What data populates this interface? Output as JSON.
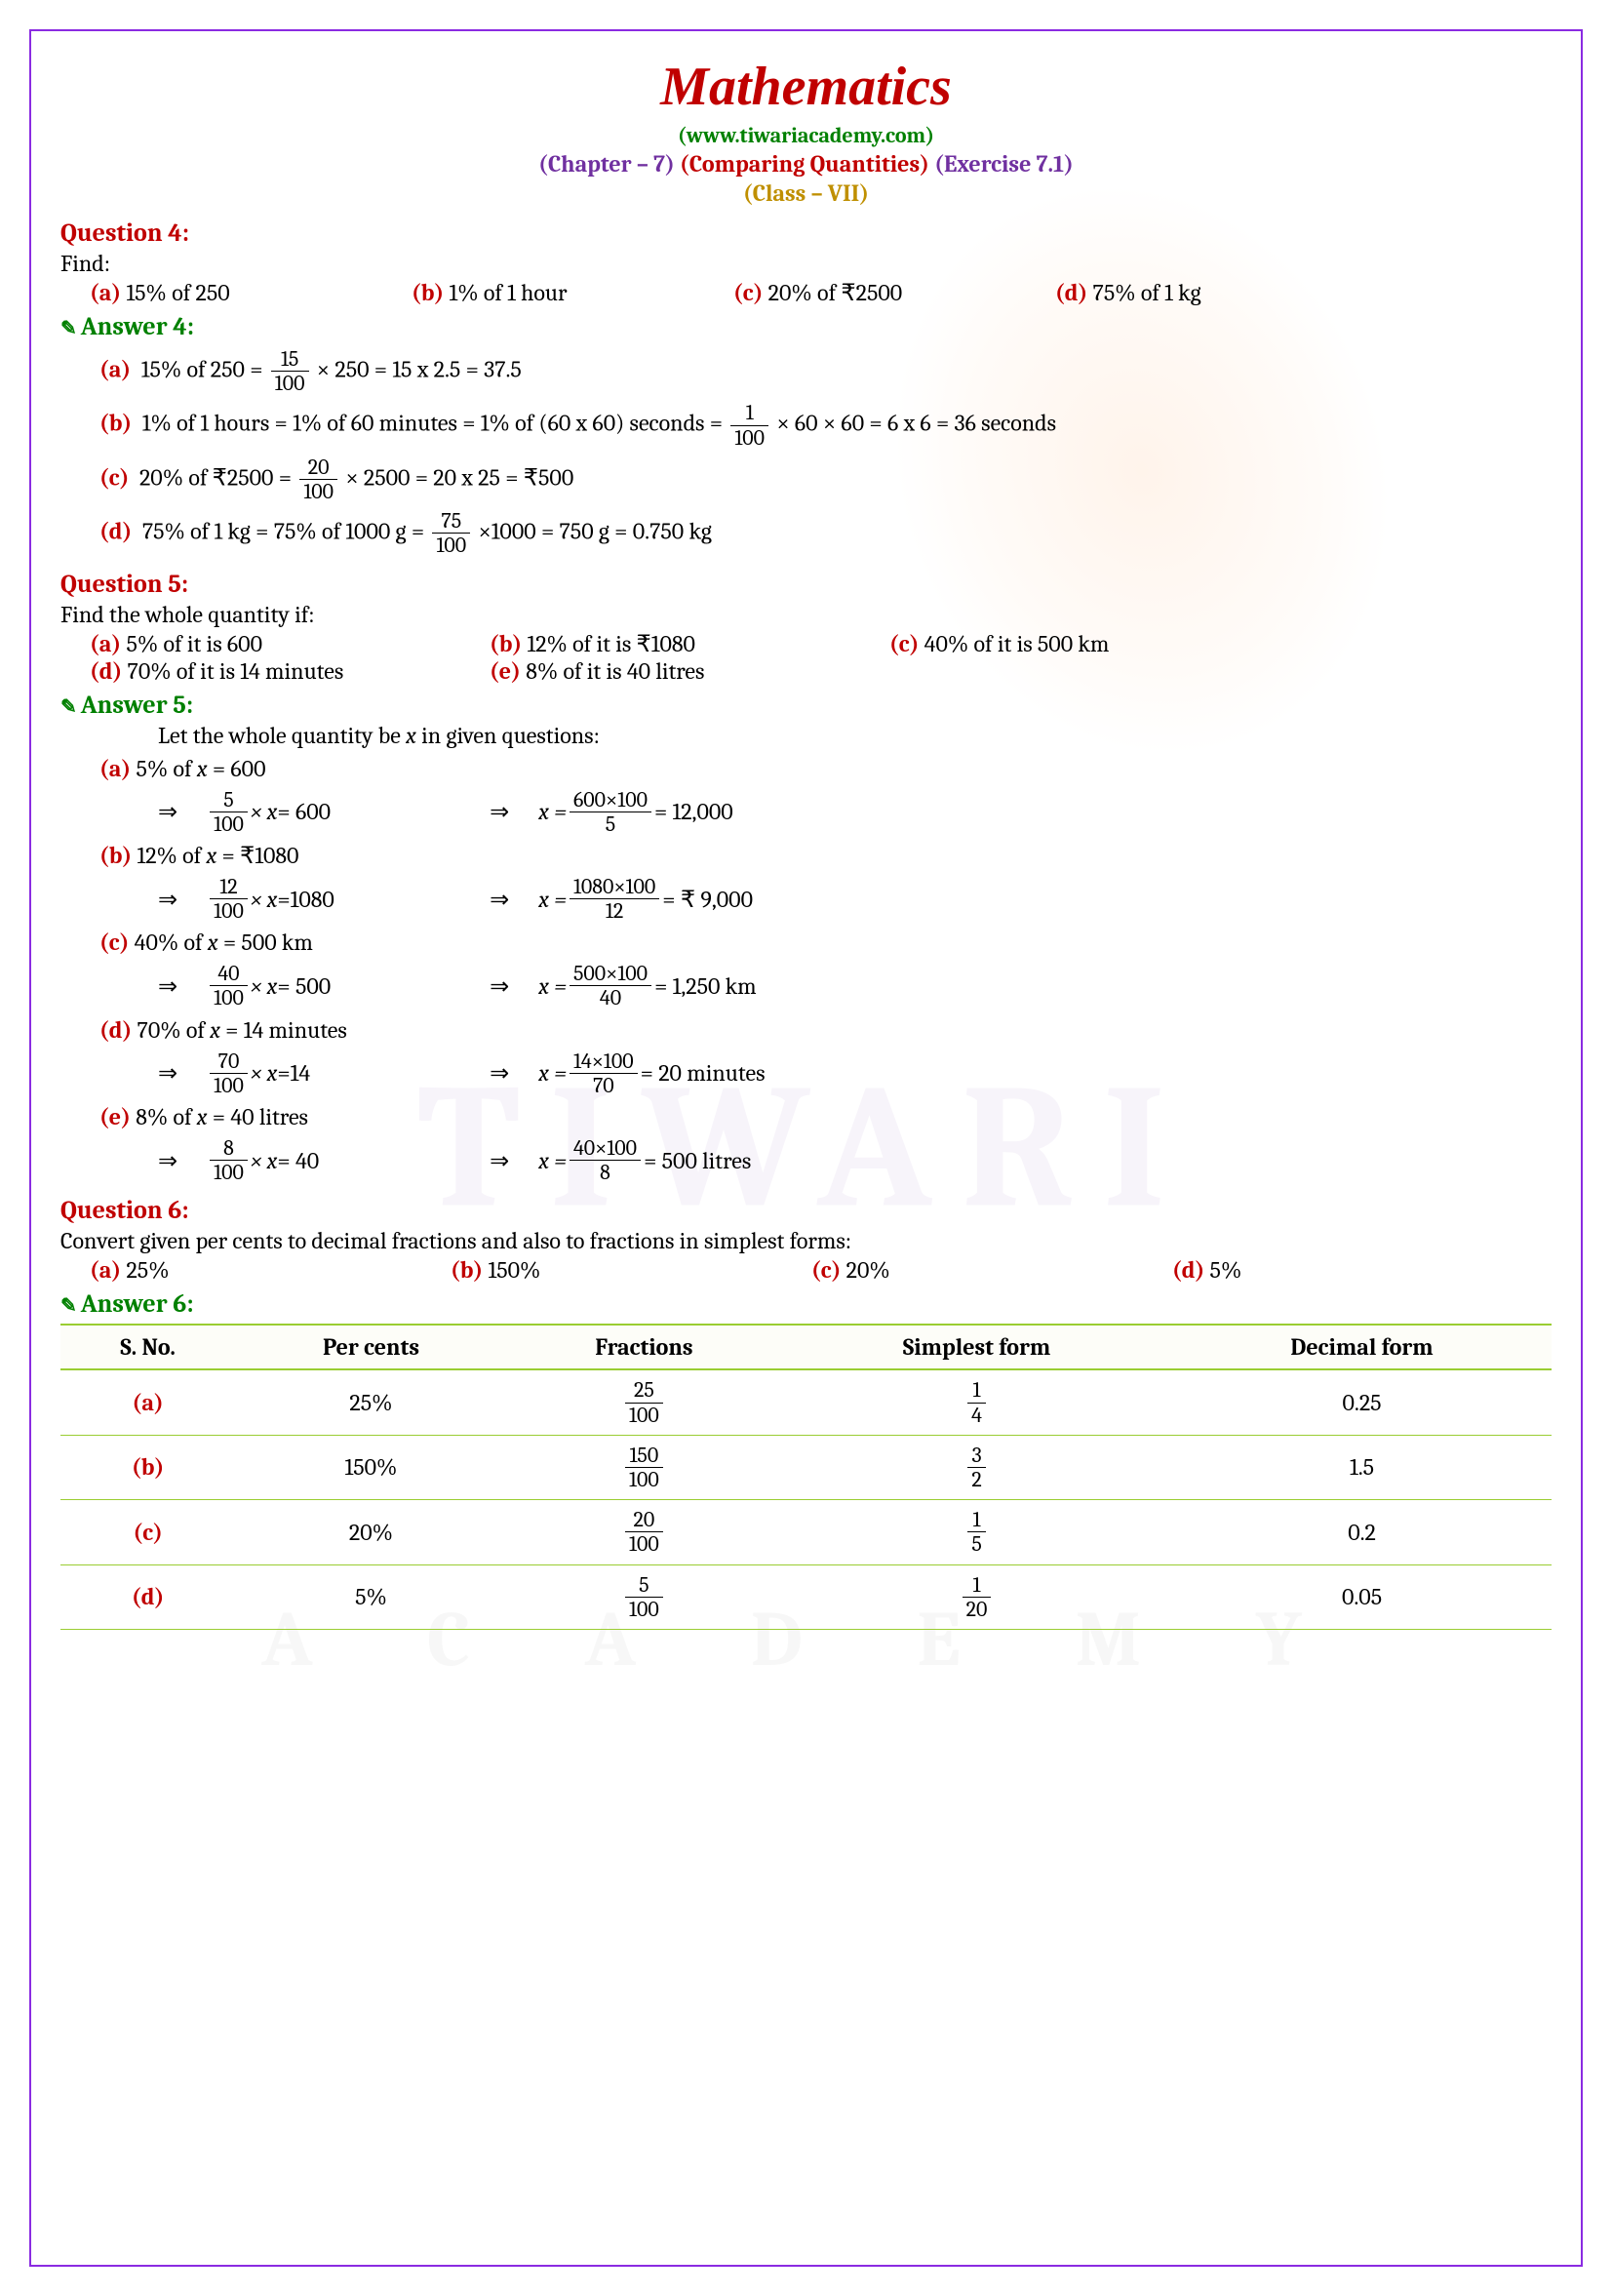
{
  "header": {
    "title": "Mathematics",
    "website": "(www.tiwariacademy.com)",
    "chapter": "(Chapter – 7) ",
    "topic": "(Comparing Quantities) ",
    "exercise": "(Exercise 7.1)",
    "class": "(Class – VII)"
  },
  "q4": {
    "heading": "Question 4:",
    "prompt": "Find:",
    "opts": {
      "a": "15% of 250",
      "b": "1% of 1 hour",
      "c": "20% of ₹2500",
      "d": "75% of 1 kg"
    },
    "ans_heading": "Answer 4:",
    "a": {
      "lhs": "15% of 250 = ",
      "num": "15",
      "den": "100",
      "mult": "× 250",
      "rhs": " = 15 x 2.5 = 37.5"
    },
    "b": {
      "lhs": "1% of 1 hours = 1% of 60 minutes = 1% of (60 x 60) seconds = ",
      "num": "1",
      "den": "100",
      "mult": "× 60 × 60",
      "rhs": " = 6 x 6 = 36 seconds"
    },
    "c": {
      "lhs": "20% of ₹2500 = ",
      "num": "20",
      "den": "100",
      "mult": "× 2500",
      "rhs": " = 20 x 25 = ₹500"
    },
    "d": {
      "lhs": "75% of 1 kg = 75% of 1000 g = ",
      "num": "75",
      "den": "100",
      "mult": "×1000",
      "rhs": " = 750 g = 0.750 kg"
    }
  },
  "q5": {
    "heading": "Question 5:",
    "prompt": "Find the whole quantity if:",
    "opts": {
      "a": "5% of it is 600",
      "b": "12% of it is ₹1080",
      "c": "40% of it is 500 km",
      "d": "70% of it is 14 minutes",
      "e": "8% of it is 40 litres"
    },
    "ans_heading": "Answer 5:",
    "intro": "Let the whole quantity be ",
    "intro_var": "x",
    "intro2": " in given questions:",
    "parts": {
      "a": {
        "stmt": "5% of ",
        "eq": " = 600",
        "n": "5",
        "d": "100",
        "xv": "= 600",
        "rn": "600×100",
        "rd": "5",
        "res": " = 12,000"
      },
      "b": {
        "stmt": "12% of ",
        "eq": " = ₹1080",
        "n": "12",
        "d": "100",
        "xv": "=1080",
        "rn": "1080×100",
        "rd": "12",
        "res": " = ₹ 9,000"
      },
      "c": {
        "stmt": "40% of ",
        "eq": " = 500 km",
        "n": "40",
        "d": "100",
        "xv": "= 500",
        "rn": "500×100",
        "rd": "40",
        "res": " = 1,250 km"
      },
      "d": {
        "stmt": "70% of ",
        "eq": " = 14 minutes",
        "n": "70",
        "d": "100",
        "xv": "=14",
        "rn": "14×100",
        "rd": "70",
        "res": " = 20 minutes"
      },
      "e": {
        "stmt": "8% of ",
        "eq": " = 40 litres",
        "n": "8",
        "d": "100",
        "xv": "= 40",
        "rn": "40×100",
        "rd": "8",
        "res": " = 500 litres"
      }
    }
  },
  "q6": {
    "heading": "Question 6:",
    "prompt": "Convert given per cents to decimal fractions and also to fractions in simplest forms:",
    "opts": {
      "a": "25%",
      "b": "150%",
      "c": "20%",
      "d": "5%"
    },
    "ans_heading": "Answer 6:",
    "table": {
      "headers": [
        "S. No.",
        "Per cents",
        "Fractions",
        "Simplest form",
        "Decimal form"
      ],
      "rows": [
        {
          "label": "(a)",
          "pct": "25%",
          "fn": "25",
          "fd": "100",
          "sn": "1",
          "sd": "4",
          "dec": "0.25"
        },
        {
          "label": "(b)",
          "pct": "150%",
          "fn": "150",
          "fd": "100",
          "sn": "3",
          "sd": "2",
          "dec": "1.5"
        },
        {
          "label": "(c)",
          "pct": "20%",
          "fn": "20",
          "fd": "100",
          "sn": "1",
          "sd": "5",
          "dec": "0.2"
        },
        {
          "label": "(d)",
          "pct": "5%",
          "fn": "5",
          "fd": "100",
          "sn": "1",
          "sd": "20",
          "dec": "0.05"
        }
      ]
    }
  },
  "labels": {
    "a": "(a)",
    "b": "(b)",
    "c": "(c)",
    "d": "(d)",
    "e": "(e)",
    "arrow": "⇒",
    "times_x": "× x",
    "x": "x",
    "xeq": "x ="
  },
  "watermark": {
    "big": "TIWARI",
    "small": "A C A D E M Y"
  },
  "colors": {
    "border": "#8a2be2",
    "title": "#c00000",
    "site": "#008000",
    "purple": "#7030a0",
    "class": "#bf8f00",
    "question": "#c00000",
    "answer": "#008000",
    "table_border": "#9acd32"
  }
}
